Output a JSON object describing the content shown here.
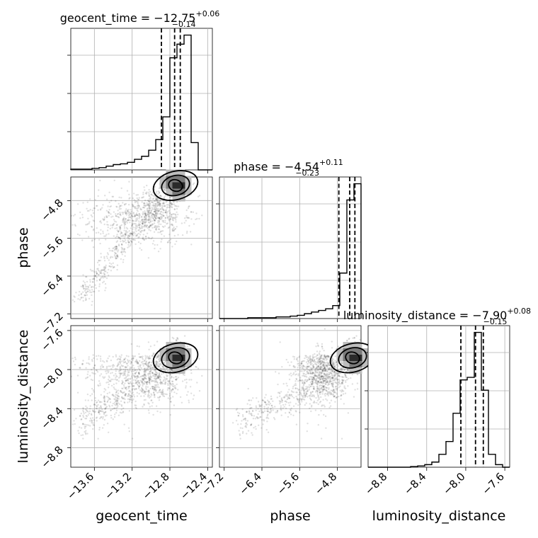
{
  "chart_data": {
    "type": "corner",
    "parameters": [
      {
        "name": "geocent_time",
        "label": "geocent_time",
        "range": [
          -13.85,
          -12.35
        ],
        "ticks": [
          -13.6,
          -13.2,
          -12.8,
          -12.4
        ],
        "tick_labels": [
          "−13.6",
          "−13.2",
          "−12.8",
          "−12.4"
        ],
        "title_prefix": "geocent_time = −12.75",
        "title_plus": "+0.06",
        "title_minus": "−0.14",
        "quantiles": [
          -12.89,
          -12.75,
          -12.69
        ],
        "hist_edges": [
          -13.85,
          -13.775,
          -13.7,
          -13.625,
          -13.55,
          -13.475,
          -13.4,
          -13.325,
          -13.25,
          -13.175,
          -13.1,
          -13.025,
          -12.95,
          -12.875,
          -12.8,
          -12.725,
          -12.65,
          -12.575,
          -12.5,
          -12.425,
          -12.35
        ],
        "hist_values": [
          0.005,
          0.005,
          0.005,
          0.01,
          0.015,
          0.025,
          0.035,
          0.04,
          0.05,
          0.07,
          0.09,
          0.13,
          0.2,
          0.35,
          0.74,
          0.83,
          0.89,
          0.18,
          0.0,
          0.0
        ]
      },
      {
        "name": "phase",
        "label": "phase",
        "range": [
          -7.3,
          -4.3
        ],
        "ticks": [
          -7.2,
          -6.4,
          -5.6,
          -4.8
        ],
        "tick_labels": [
          "−7.2",
          "−6.4",
          "−5.6",
          "−4.8"
        ],
        "title_prefix": "phase = −4.54",
        "title_plus": "+0.11",
        "title_minus": "−0.23",
        "quantiles": [
          -4.77,
          -4.54,
          -4.43
        ],
        "hist_edges": [
          -7.3,
          -7.15,
          -7.0,
          -6.85,
          -6.7,
          -6.55,
          -6.4,
          -6.25,
          -6.1,
          -5.95,
          -5.8,
          -5.65,
          -5.5,
          -5.35,
          -5.2,
          -5.05,
          -4.9,
          -4.75,
          -4.6,
          -4.45,
          -4.3
        ],
        "hist_values": [
          0.0,
          0.0,
          0.0,
          0.0,
          0.005,
          0.005,
          0.005,
          0.005,
          0.01,
          0.01,
          0.015,
          0.02,
          0.03,
          0.04,
          0.05,
          0.06,
          0.08,
          0.28,
          0.73,
          0.83
        ]
      },
      {
        "name": "luminosity_distance",
        "label": "luminosity_distance",
        "range": [
          -9.0,
          -7.55
        ],
        "ticks": [
          -8.8,
          -8.4,
          -8.0,
          -7.6
        ],
        "tick_labels": [
          "−8.8",
          "−8.4",
          "−8.0",
          "−7.6"
        ],
        "title_prefix": "luminosity_distance = −7.90",
        "title_plus": "+0.08",
        "title_minus": "−0.15",
        "quantiles": [
          -8.05,
          -7.9,
          -7.82
        ],
        "hist_edges": [
          -9.0,
          -8.9275,
          -8.855,
          -8.7825,
          -8.71,
          -8.6375,
          -8.565,
          -8.4925,
          -8.42,
          -8.3475,
          -8.275,
          -8.2025,
          -8.13,
          -8.0575,
          -7.985,
          -7.9125,
          -7.84,
          -7.7675,
          -7.695,
          -7.6225,
          -7.55
        ],
        "hist_values": [
          0.0,
          0.0,
          0.0,
          0.0,
          0.0,
          0.0,
          0.005,
          0.01,
          0.02,
          0.04,
          0.1,
          0.2,
          0.42,
          0.68,
          0.7,
          1.05,
          0.6,
          0.1,
          0.02,
          0.0
        ]
      }
    ],
    "contour_levels": 3,
    "grid": true
  }
}
